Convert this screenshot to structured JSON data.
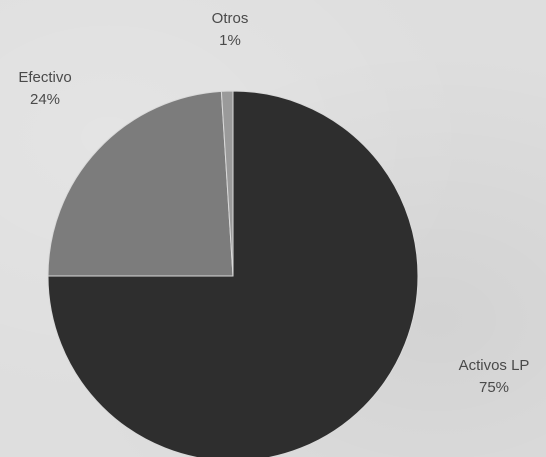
{
  "chart_data": {
    "type": "pie",
    "title": "",
    "slices": [
      {
        "label": "Activos LP",
        "value": 75,
        "value_label": "75%",
        "color": "#2e2e2e"
      },
      {
        "label": "Efectivo",
        "value": 24,
        "value_label": "24%",
        "color": "#7c7c7c"
      },
      {
        "label": "Otros",
        "value": 1,
        "value_label": "1%",
        "color": "#9a9a9a"
      }
    ],
    "start": "12 o'clock",
    "direction": "clockwise",
    "legend": "none",
    "labels_outside": true
  }
}
